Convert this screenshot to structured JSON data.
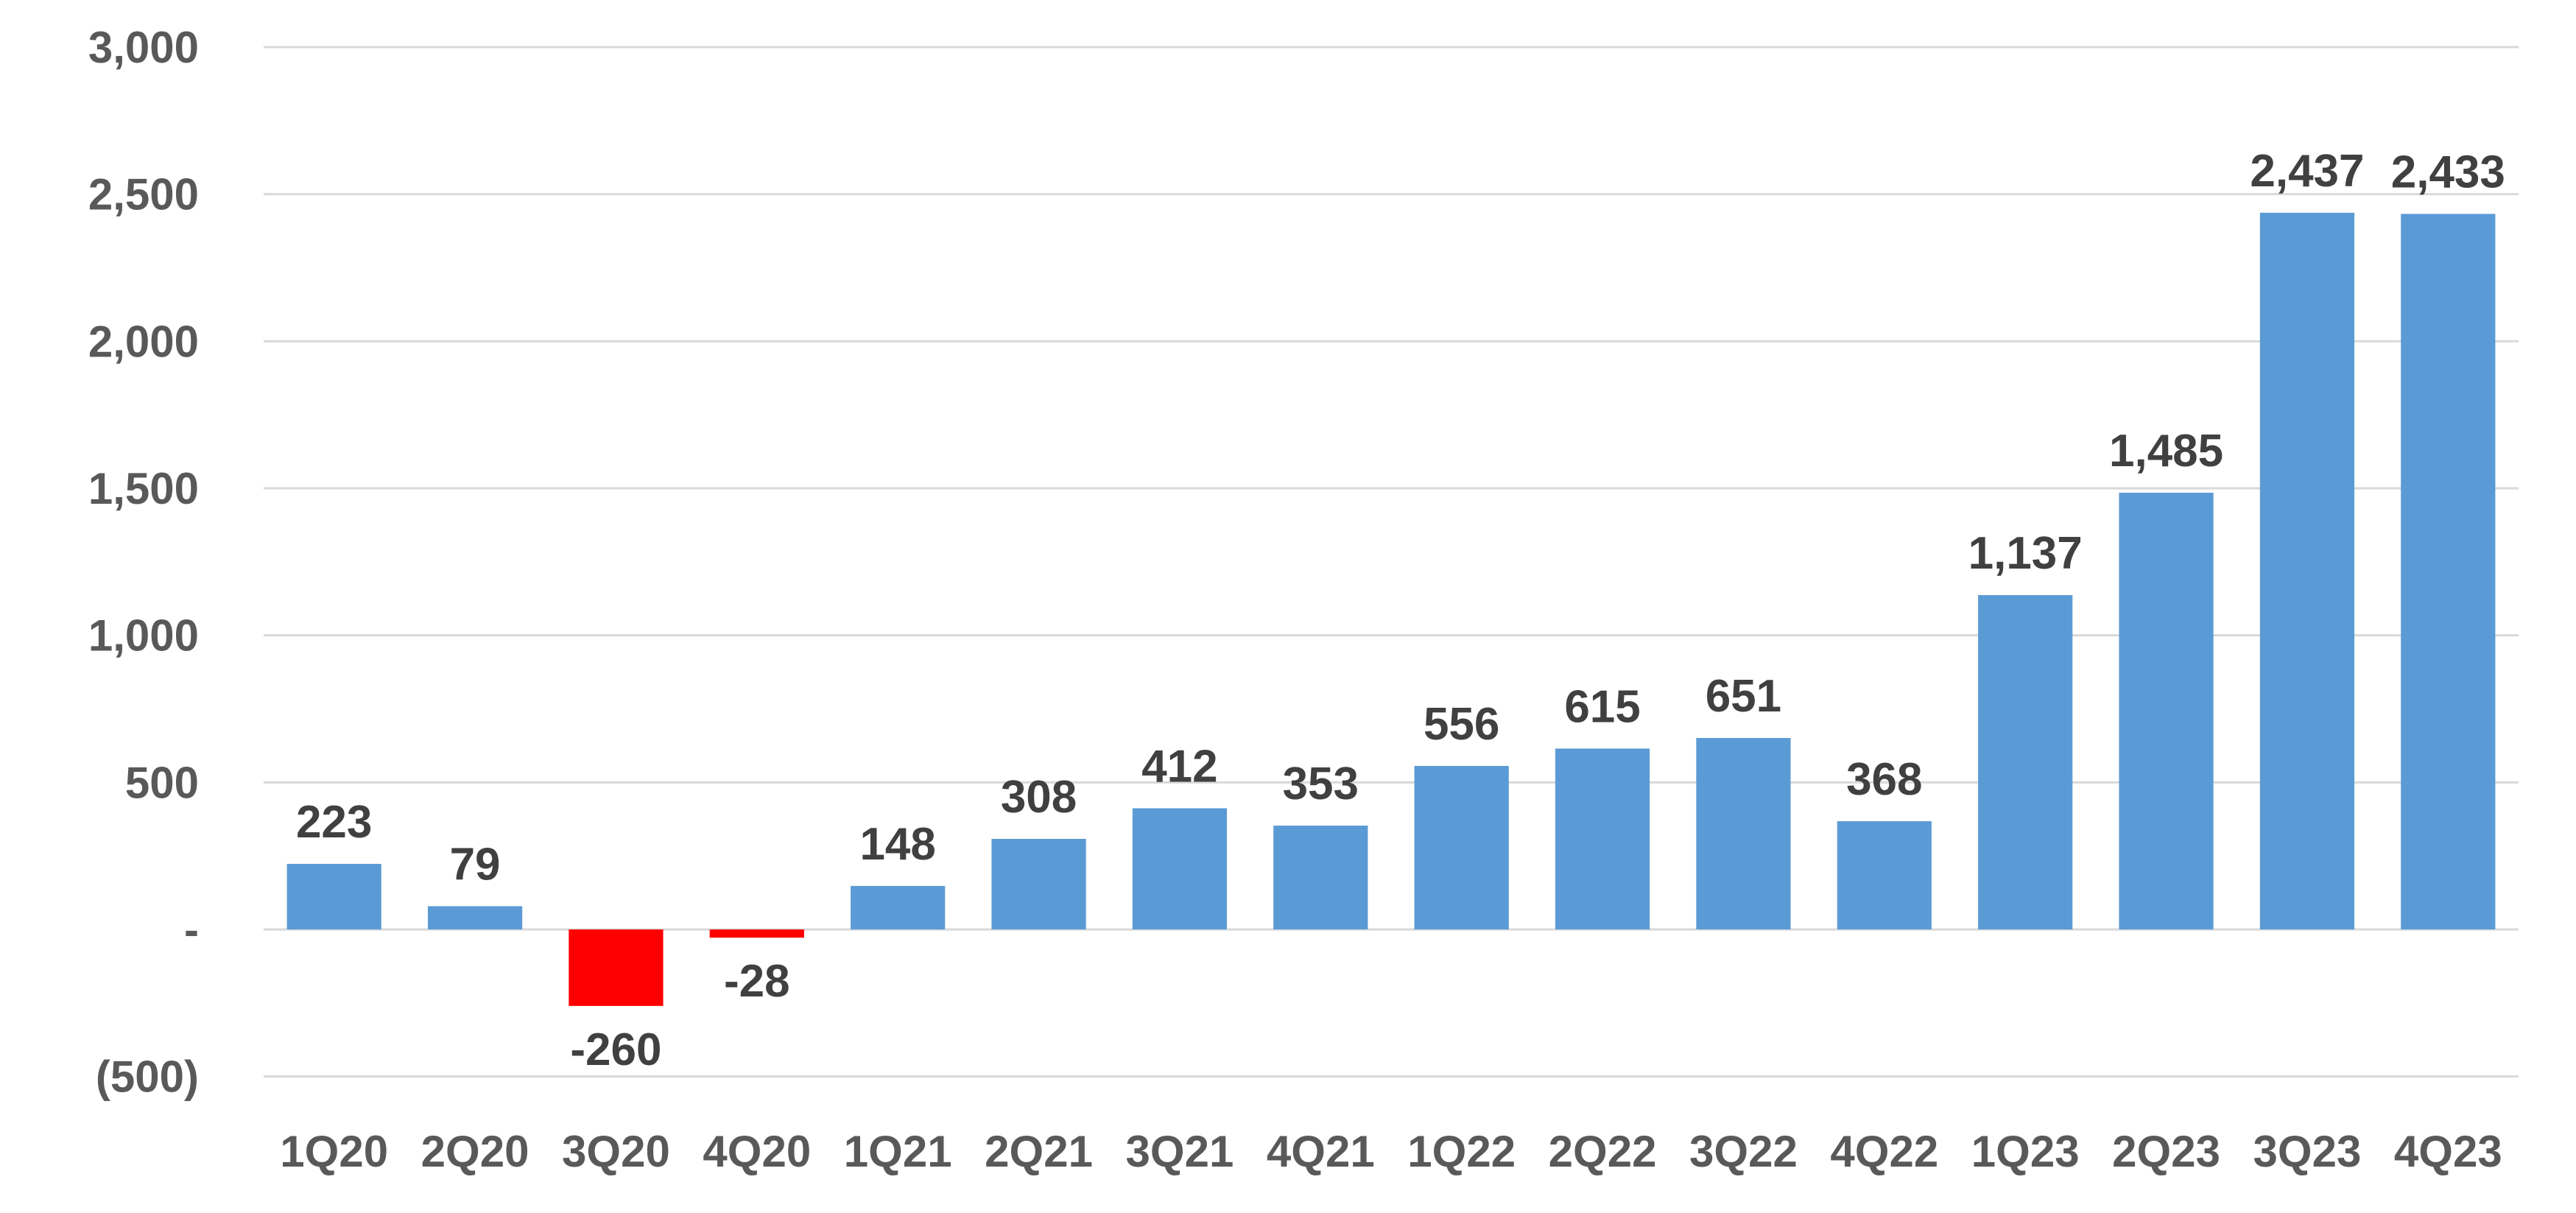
{
  "chart_data": {
    "type": "bar",
    "title": "",
    "xlabel": "",
    "ylabel": "",
    "ylim": [
      -500,
      3000
    ],
    "yticks": [
      -500,
      0,
      500,
      1000,
      1500,
      2000,
      2500,
      3000
    ],
    "ytick_labels": [
      "(500)",
      "-",
      "500",
      "1,000",
      "1,500",
      "2,000",
      "2,500",
      "3,000"
    ],
    "grid": true,
    "legend": "none",
    "categories": [
      "1Q20",
      "2Q20",
      "3Q20",
      "4Q20",
      "1Q21",
      "2Q21",
      "3Q21",
      "4Q21",
      "1Q22",
      "2Q22",
      "3Q22",
      "4Q22",
      "1Q23",
      "2Q23",
      "3Q23",
      "4Q23"
    ],
    "values": [
      223,
      79,
      -260,
      -28,
      148,
      308,
      412,
      353,
      556,
      615,
      651,
      368,
      1137,
      1485,
      2437,
      2433
    ],
    "value_labels": [
      "223",
      "79",
      "-260",
      "-28",
      "148",
      "308",
      "412",
      "353",
      "556",
      "615",
      "651",
      "368",
      "1,137",
      "1,485",
      "2,437",
      "2,433"
    ],
    "colors": {
      "positive": "#5b9bd5",
      "negative": "#ff0000",
      "gridline": "#d9d9d9",
      "tick_text": "#595959",
      "label_text": "#404040"
    }
  }
}
